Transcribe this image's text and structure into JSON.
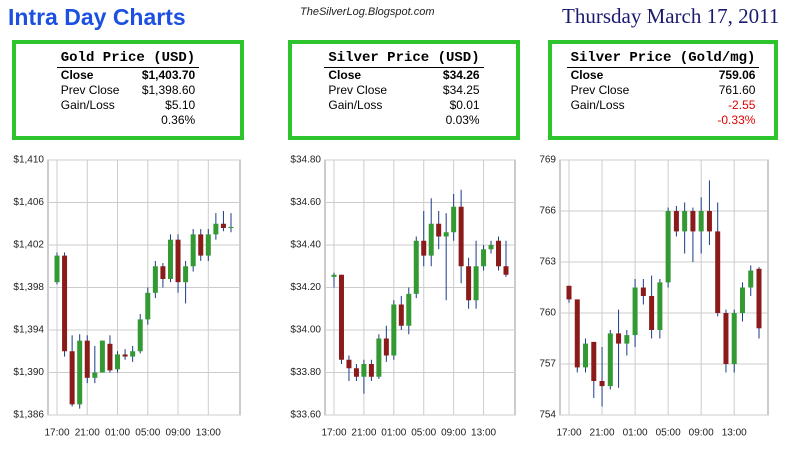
{
  "header": {
    "title": "Intra Day Charts",
    "site": "TheSilverLog.Blogspot.com",
    "date": "Thursday March 17, 2011"
  },
  "panels": [
    {
      "title": "Gold Price (USD)",
      "rows": [
        {
          "label": "Close",
          "value": "$1,403.70"
        },
        {
          "label": "Prev Close",
          "value": "$1,398.60"
        },
        {
          "label": "Gain/Loss",
          "value": "$5.10"
        },
        {
          "value": "0.36%"
        }
      ]
    },
    {
      "title": "Silver Price (USD)",
      "rows": [
        {
          "label": "Close",
          "value": "$34.26"
        },
        {
          "label": "Prev Close",
          "value": "$34.25"
        },
        {
          "label": "Gain/Loss",
          "value": "$0.01"
        },
        {
          "value": "0.03%"
        }
      ]
    },
    {
      "title": "Silver Price (Gold/mg)",
      "rows": [
        {
          "label": "Close",
          "value": "759.06"
        },
        {
          "label": "Prev Close",
          "value": "761.60"
        },
        {
          "label": "Gain/Loss",
          "value": "-2.55",
          "color": "#e00000"
        },
        {
          "value": "-0.33%",
          "color": "#e00000"
        }
      ]
    }
  ],
  "chart_data": [
    {
      "type": "candlestick",
      "up_color": "#339933",
      "down_color": "#8b1a1a",
      "grid": true,
      "categories": [
        "17:00",
        null,
        null,
        null,
        "21:00",
        null,
        null,
        null,
        "01:00",
        null,
        null,
        null,
        "05:00",
        null,
        null,
        null,
        "09:00",
        null,
        null,
        null,
        "13:00",
        null,
        null,
        null
      ],
      "open": [
        1398.5,
        1401,
        1392,
        1387,
        1393,
        1389.5,
        1390,
        1392.7,
        1390.3,
        1391.7,
        1391.5,
        1392,
        1395,
        1397.5,
        1400,
        1398.8,
        1402.5,
        1398.5,
        1400,
        1403,
        1401,
        1403,
        1404,
        1403.6
      ],
      "high": [
        1401.3,
        1401.3,
        1393.5,
        1393.6,
        1393.5,
        1392.5,
        1393,
        1393.5,
        1392,
        1392.2,
        1392.5,
        1395.5,
        1398,
        1400.5,
        1400.3,
        1403,
        1403,
        1400.5,
        1403.5,
        1403.5,
        1403.5,
        1405,
        1405.2,
        1405
      ],
      "low": [
        1398.3,
        1391.5,
        1386.8,
        1386.6,
        1389,
        1389,
        1390,
        1390,
        1390,
        1391.2,
        1391,
        1391.8,
        1394.5,
        1397,
        1398,
        1398.5,
        1397.5,
        1396.5,
        1399.5,
        1400.5,
        1400.5,
        1402.5,
        1403.3,
        1403.2
      ],
      "close": [
        1401,
        1392,
        1387,
        1393,
        1389.5,
        1390,
        1393,
        1390.2,
        1391.7,
        1391.5,
        1392,
        1395,
        1397.5,
        1400,
        1398.8,
        1402.5,
        1398.5,
        1400,
        1403,
        1401,
        1403,
        1404,
        1403.6,
        1403.7
      ],
      "ylim": [
        1386,
        1410
      ],
      "yticks": [
        {
          "value": 1386,
          "label": "$1,386"
        },
        {
          "value": 1390,
          "label": "$1,390"
        },
        {
          "value": 1394,
          "label": "$1,394"
        },
        {
          "value": 1398,
          "label": "$1,398"
        },
        {
          "value": 1402,
          "label": "$1,402"
        },
        {
          "value": 1406,
          "label": "$1,406"
        },
        {
          "value": 1410,
          "label": "$1,410"
        }
      ]
    },
    {
      "type": "candlestick",
      "up_color": "#339933",
      "down_color": "#8b1a1a",
      "grid": true,
      "categories": [
        "17:00",
        null,
        null,
        null,
        "21:00",
        null,
        null,
        null,
        "01:00",
        null,
        null,
        null,
        "05:00",
        null,
        null,
        null,
        "09:00",
        null,
        null,
        null,
        "13:00",
        null,
        null,
        null
      ],
      "open": [
        34.25,
        34.26,
        33.86,
        33.82,
        33.78,
        33.84,
        33.78,
        33.96,
        33.88,
        34.12,
        34.02,
        34.17,
        34.42,
        34.35,
        34.5,
        34.44,
        34.46,
        34.58,
        34.3,
        34.14,
        34.3,
        34.38,
        34.42,
        34.3
      ],
      "high": [
        34.27,
        34.26,
        33.88,
        33.84,
        33.86,
        33.86,
        33.98,
        34.02,
        34.14,
        34.16,
        34.2,
        34.44,
        34.56,
        34.62,
        34.56,
        34.55,
        34.64,
        34.66,
        34.34,
        34.42,
        34.4,
        34.42,
        34.44,
        34.42
      ],
      "low": [
        34.2,
        33.84,
        33.76,
        33.76,
        33.7,
        33.76,
        33.77,
        33.85,
        33.86,
        34.0,
        33.98,
        34.15,
        34.3,
        34.3,
        34.38,
        34.14,
        34.42,
        34.22,
        34.1,
        34.1,
        34.28,
        34.36,
        34.28,
        34.25
      ],
      "close": [
        34.26,
        33.86,
        33.82,
        33.78,
        33.84,
        33.78,
        33.96,
        33.88,
        34.12,
        34.02,
        34.17,
        34.42,
        34.35,
        34.5,
        34.44,
        34.46,
        34.58,
        34.3,
        34.14,
        34.3,
        34.38,
        34.4,
        34.3,
        34.26
      ],
      "ylim": [
        33.6,
        34.8
      ],
      "yticks": [
        {
          "value": 33.6,
          "label": "$33.60"
        },
        {
          "value": 33.8,
          "label": "$33.80"
        },
        {
          "value": 34.0,
          "label": "$34.00"
        },
        {
          "value": 34.2,
          "label": "$34.20"
        },
        {
          "value": 34.4,
          "label": "$34.40"
        },
        {
          "value": 34.6,
          "label": "$34.60"
        },
        {
          "value": 34.8,
          "label": "$34.80"
        }
      ]
    },
    {
      "type": "candlestick",
      "up_color": "#339933",
      "down_color": "#8b1a1a",
      "grid": true,
      "categories": [
        "17:00",
        null,
        null,
        null,
        "21:00",
        null,
        null,
        null,
        "01:00",
        null,
        null,
        null,
        "05:00",
        null,
        null,
        null,
        "09:00",
        null,
        null,
        null,
        "13:00",
        null,
        null,
        null
      ],
      "open": [
        761.6,
        760.8,
        756.8,
        758.3,
        756,
        755.7,
        758.8,
        758.2,
        758.7,
        761.5,
        761,
        759,
        761.8,
        766,
        764.8,
        766,
        764.8,
        766,
        764.8,
        760,
        757,
        760,
        761.5,
        762.6
      ],
      "high": [
        761.6,
        760.8,
        758.5,
        758.3,
        758,
        759,
        760.2,
        759,
        762,
        762,
        762.2,
        762,
        766.2,
        766.3,
        766.5,
        766.2,
        766.8,
        767.8,
        766.5,
        760.2,
        760.2,
        761.8,
        762.8,
        762.7
      ],
      "low": [
        760.6,
        756.5,
        756.5,
        755,
        754.5,
        755.5,
        755.6,
        757.5,
        758,
        760.5,
        758.5,
        758.5,
        761.5,
        764.5,
        763.5,
        763,
        763.5,
        764,
        759.8,
        756.5,
        756.5,
        759.5,
        761,
        758.5
      ],
      "close": [
        760.8,
        756.8,
        758.2,
        756,
        755.7,
        758.8,
        758.2,
        758.7,
        761.5,
        761,
        759,
        761.8,
        766,
        764.8,
        766,
        764.8,
        766,
        764.8,
        760,
        757,
        760,
        761.5,
        762.5,
        759.1
      ],
      "ylim": [
        754,
        769
      ],
      "yticks": [
        754,
        757,
        760,
        763,
        766,
        769
      ]
    }
  ]
}
